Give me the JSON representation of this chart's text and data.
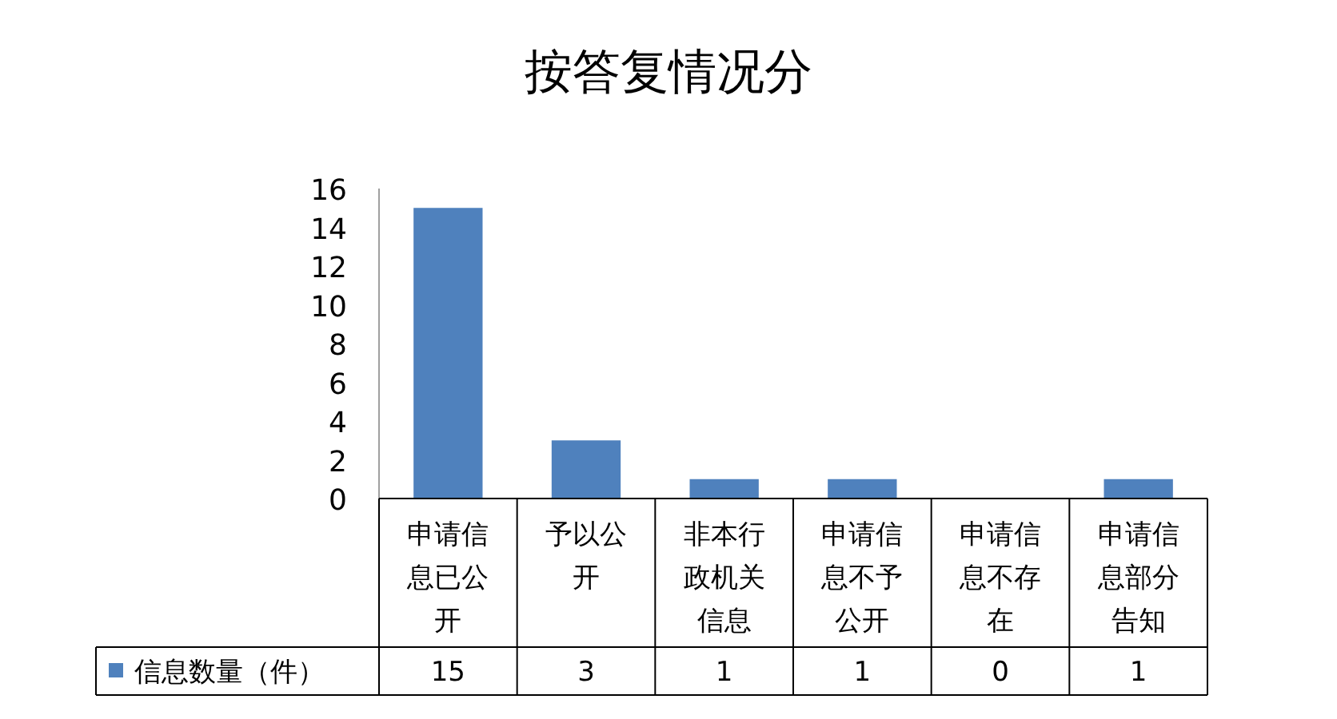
{
  "chart_data": {
    "type": "bar",
    "title": "按答复情况分",
    "categories": [
      "申请信息已公开",
      "予以公开",
      "非本行政机关信息",
      "申请信息不予公开",
      "申请信息不存在",
      "申请信息部分告知"
    ],
    "series": [
      {
        "name": "信息数量（件）",
        "color": "#4f81bd",
        "values": [
          15,
          3,
          1,
          1,
          0,
          1
        ]
      }
    ],
    "ylim": [
      0,
      16
    ],
    "yticks": [
      0,
      2,
      4,
      6,
      8,
      10,
      12,
      14,
      16
    ],
    "data_labels": true,
    "legend": "bottom left"
  }
}
